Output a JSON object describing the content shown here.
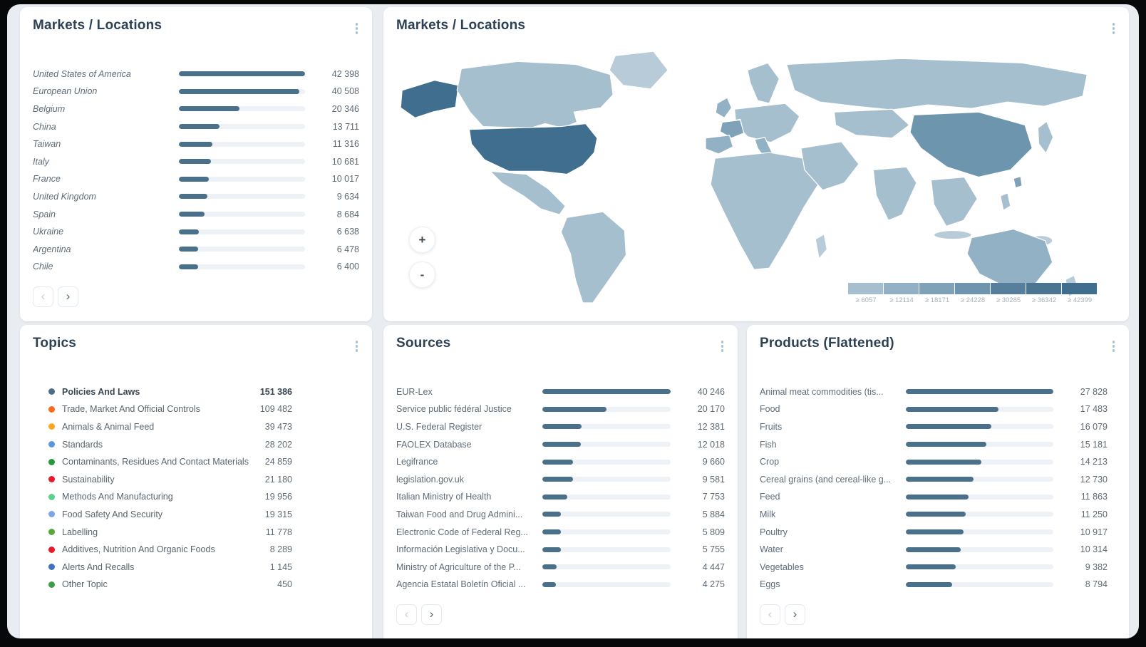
{
  "colors": {
    "bar": "#4b7089",
    "bar_track": "#eef2f7",
    "title": "#2d4155",
    "page_bg": "#e9edf2"
  },
  "pagination": {
    "prev": "‹",
    "next": "›"
  },
  "markets": {
    "title": "Markets / Locations",
    "items": [
      {
        "label": "United States of America",
        "value": 42398,
        "display": "42 398"
      },
      {
        "label": "European Union",
        "value": 40508,
        "display": "40 508"
      },
      {
        "label": "Belgium",
        "value": 20346,
        "display": "20 346"
      },
      {
        "label": "China",
        "value": 13711,
        "display": "13 711"
      },
      {
        "label": "Taiwan",
        "value": 11316,
        "display": "11 316"
      },
      {
        "label": "Italy",
        "value": 10681,
        "display": "10 681"
      },
      {
        "label": "France",
        "value": 10017,
        "display": "10 017"
      },
      {
        "label": "United Kingdom",
        "value": 9634,
        "display": "9 634"
      },
      {
        "label": "Spain",
        "value": 8684,
        "display": "8 684"
      },
      {
        "label": "Ukraine",
        "value": 6638,
        "display": "6 638"
      },
      {
        "label": "Argentina",
        "value": 6478,
        "display": "6 478"
      },
      {
        "label": "Chile",
        "value": 6400,
        "display": "6 400"
      }
    ]
  },
  "map": {
    "title": "Markets / Locations",
    "zoom_in_label": "+",
    "zoom_out_label": "-",
    "palette": [
      "#b7cbd8",
      "#a5bfcf",
      "#93b1c4",
      "#7fa2b8",
      "#6d95ae",
      "#557f9c",
      "#3f6e8e"
    ],
    "legend": [
      {
        "label": "≥ 6057",
        "color": "#a5bfcf"
      },
      {
        "label": "≥ 12114",
        "color": "#93b1c4"
      },
      {
        "label": "≥ 18171",
        "color": "#7fa2b8"
      },
      {
        "label": "≥ 24228",
        "color": "#6d95ae"
      },
      {
        "label": "≥ 30285",
        "color": "#557f9c"
      },
      {
        "label": "≥ 36342",
        "color": "#4a7694"
      },
      {
        "label": "≥ 42399",
        "color": "#3f6e8e"
      }
    ]
  },
  "topics": {
    "title": "Topics",
    "items": [
      {
        "label": "Policies And Laws",
        "value": 151386,
        "display": "151 386",
        "color": "#4a6e85",
        "bold": true
      },
      {
        "label": "Trade, Market And Official Controls",
        "value": 109482,
        "display": "109 482",
        "color": "#f96c1f"
      },
      {
        "label": "Animals & Animal Feed",
        "value": 39473,
        "display": "39 473",
        "color": "#f9a825"
      },
      {
        "label": "Standards",
        "value": 28202,
        "display": "28 202",
        "color": "#5b96e3"
      },
      {
        "label": "Contaminants, Residues And Contact Materials",
        "value": 24859,
        "display": "24 859",
        "color": "#27963c"
      },
      {
        "label": "Sustainability",
        "value": 21180,
        "display": "21 180",
        "color": "#e8192c"
      },
      {
        "label": "Methods And Manufacturing",
        "value": 19956,
        "display": "19 956",
        "color": "#5cd18e"
      },
      {
        "label": "Food Safety And Security",
        "value": 19315,
        "display": "19 315",
        "color": "#7da4e8"
      },
      {
        "label": "Labelling",
        "value": 11778,
        "display": "11 778",
        "color": "#5aa53c"
      },
      {
        "label": "Additives, Nutrition And Organic Foods",
        "value": 8289,
        "display": "8 289",
        "color": "#e8192c"
      },
      {
        "label": "Alerts And Recalls",
        "value": 1145,
        "display": "1 145",
        "color": "#3e72bd"
      },
      {
        "label": "Other Topic",
        "value": 450,
        "display": "450",
        "color": "#3f9e4d"
      }
    ]
  },
  "sources": {
    "title": "Sources",
    "items": [
      {
        "label": "EUR-Lex",
        "value": 40246,
        "display": "40 246"
      },
      {
        "label": "Service public fédéral Justice",
        "value": 20170,
        "display": "20 170"
      },
      {
        "label": "U.S. Federal Register",
        "value": 12381,
        "display": "12 381"
      },
      {
        "label": "FAOLEX Database",
        "value": 12018,
        "display": "12 018"
      },
      {
        "label": "Legifrance",
        "value": 9660,
        "display": "9 660"
      },
      {
        "label": "legislation.gov.uk",
        "value": 9581,
        "display": "9 581"
      },
      {
        "label": "Italian Ministry of Health",
        "value": 7753,
        "display": "7 753"
      },
      {
        "label": "Taiwan Food and Drug Admini...",
        "value": 5884,
        "display": "5 884"
      },
      {
        "label": "Electronic Code of Federal Reg...",
        "value": 5809,
        "display": "5 809"
      },
      {
        "label": "Información Legislativa y Docu...",
        "value": 5755,
        "display": "5 755"
      },
      {
        "label": "Ministry of Agriculture of the P...",
        "value": 4447,
        "display": "4 447"
      },
      {
        "label": "Agencia Estatal Boletín Oficial ...",
        "value": 4275,
        "display": "4 275"
      }
    ]
  },
  "products": {
    "title": "Products (Flattened)",
    "items": [
      {
        "label": "Animal meat commodities (tis...",
        "value": 27828,
        "display": "27 828"
      },
      {
        "label": "Food",
        "value": 17483,
        "display": "17 483"
      },
      {
        "label": "Fruits",
        "value": 16079,
        "display": "16 079"
      },
      {
        "label": "Fish",
        "value": 15181,
        "display": "15 181"
      },
      {
        "label": "Crop",
        "value": 14213,
        "display": "14 213"
      },
      {
        "label": "Cereal grains (and cereal-like g...",
        "value": 12730,
        "display": "12 730"
      },
      {
        "label": "Feed",
        "value": 11863,
        "display": "11 863"
      },
      {
        "label": "Milk",
        "value": 11250,
        "display": "11 250"
      },
      {
        "label": "Poultry",
        "value": 10917,
        "display": "10 917"
      },
      {
        "label": "Water",
        "value": 10314,
        "display": "10 314"
      },
      {
        "label": "Vegetables",
        "value": 9382,
        "display": "9 382"
      },
      {
        "label": "Eggs",
        "value": 8794,
        "display": "8 794"
      }
    ]
  },
  "chart_data": [
    {
      "type": "bar",
      "title": "Markets / Locations",
      "orientation": "horizontal",
      "categories": [
        "United States of America",
        "European Union",
        "Belgium",
        "China",
        "Taiwan",
        "Italy",
        "France",
        "United Kingdom",
        "Spain",
        "Ukraine",
        "Argentina",
        "Chile"
      ],
      "values": [
        42398,
        40508,
        20346,
        13711,
        11316,
        10681,
        10017,
        9634,
        8684,
        6638,
        6478,
        6400
      ]
    },
    {
      "type": "heatmap",
      "title": "Markets / Locations",
      "subtype": "world-choropleth",
      "legend_thresholds": [
        6057,
        12114,
        18171,
        24228,
        30285,
        36342,
        42399
      ],
      "legend_labels": [
        "≥ 6057",
        "≥ 12114",
        "≥ 18171",
        "≥ 24228",
        "≥ 30285",
        "≥ 36342",
        "≥ 42399"
      ]
    },
    {
      "type": "table",
      "title": "Topics",
      "categories": [
        "Policies And Laws",
        "Trade, Market And Official Controls",
        "Animals & Animal Feed",
        "Standards",
        "Contaminants, Residues And Contact Materials",
        "Sustainability",
        "Methods And Manufacturing",
        "Food Safety And Security",
        "Labelling",
        "Additives, Nutrition And Organic Foods",
        "Alerts And Recalls",
        "Other Topic"
      ],
      "values": [
        151386,
        109482,
        39473,
        28202,
        24859,
        21180,
        19956,
        19315,
        11778,
        8289,
        1145,
        450
      ]
    },
    {
      "type": "bar",
      "title": "Sources",
      "orientation": "horizontal",
      "categories": [
        "EUR-Lex",
        "Service public fédéral Justice",
        "U.S. Federal Register",
        "FAOLEX Database",
        "Legifrance",
        "legislation.gov.uk",
        "Italian Ministry of Health",
        "Taiwan Food and Drug Admini...",
        "Electronic Code of Federal Reg...",
        "Información Legislativa y Docu...",
        "Ministry of Agriculture of the P...",
        "Agencia Estatal Boletín Oficial ..."
      ],
      "values": [
        40246,
        20170,
        12381,
        12018,
        9660,
        9581,
        7753,
        5884,
        5809,
        5755,
        4447,
        4275
      ]
    },
    {
      "type": "bar",
      "title": "Products (Flattened)",
      "orientation": "horizontal",
      "categories": [
        "Animal meat commodities (tis...",
        "Food",
        "Fruits",
        "Fish",
        "Crop",
        "Cereal grains (and cereal-like g...",
        "Feed",
        "Milk",
        "Poultry",
        "Water",
        "Vegetables",
        "Eggs"
      ],
      "values": [
        27828,
        17483,
        16079,
        15181,
        14213,
        12730,
        11863,
        11250,
        10917,
        10314,
        9382,
        8794
      ]
    }
  ]
}
